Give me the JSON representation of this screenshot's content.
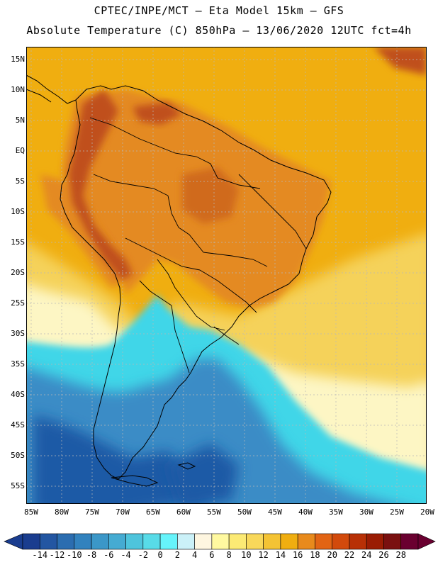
{
  "header": {
    "line1": "CPTEC/INPE/MCT –  Eta Model 15km – GFS",
    "line2": "Absolute Temperature (C) 850hPa – 13/06/2020 12UTC fct=4h"
  },
  "map": {
    "lat_labels": [
      "15N",
      "10N",
      "5N",
      "EQ",
      "5S",
      "10S",
      "15S",
      "20S",
      "25S",
      "30S",
      "35S",
      "40S",
      "45S",
      "50S",
      "55S"
    ],
    "lon_labels": [
      "85W",
      "80W",
      "75W",
      "70W",
      "65W",
      "60W",
      "55W",
      "50W",
      "45W",
      "40W",
      "35W",
      "30W",
      "25W",
      "20W"
    ],
    "palette": {
      "ocean_north": "#f0ae10",
      "land_warm": "#e48a22",
      "land_hot": "#c0501a",
      "mid_yellow": "#f5d25a",
      "pale_yellow": "#fdf6c4",
      "cyan": "#3fd6e8",
      "cold_blue": "#3b8cc6",
      "deep_blue": "#1f5aa6",
      "border": "#000000"
    }
  },
  "colorbar": {
    "tick_labels": [
      "-14",
      "-12",
      "-10",
      "-8",
      "-6",
      "-4",
      "-2",
      "0",
      "2",
      "4",
      "6",
      "8",
      "10",
      "12",
      "14",
      "16",
      "18",
      "20",
      "22",
      "24",
      "26",
      "28"
    ],
    "colors": [
      "#1a3d8f",
      "#2356a2",
      "#2b6db0",
      "#3282be",
      "#3b97c8",
      "#45abd2",
      "#4ec4dc",
      "#58dbe8",
      "#66f4fb",
      "#cbf1f8",
      "#fef6e0",
      "#fff9a0",
      "#fcea74",
      "#f8d85a",
      "#f4c334",
      "#f0ae10",
      "#e88a1c",
      "#e26414",
      "#d24a0c",
      "#b83006",
      "#9a1c04",
      "#7a1010",
      "#6a0030"
    ]
  }
}
